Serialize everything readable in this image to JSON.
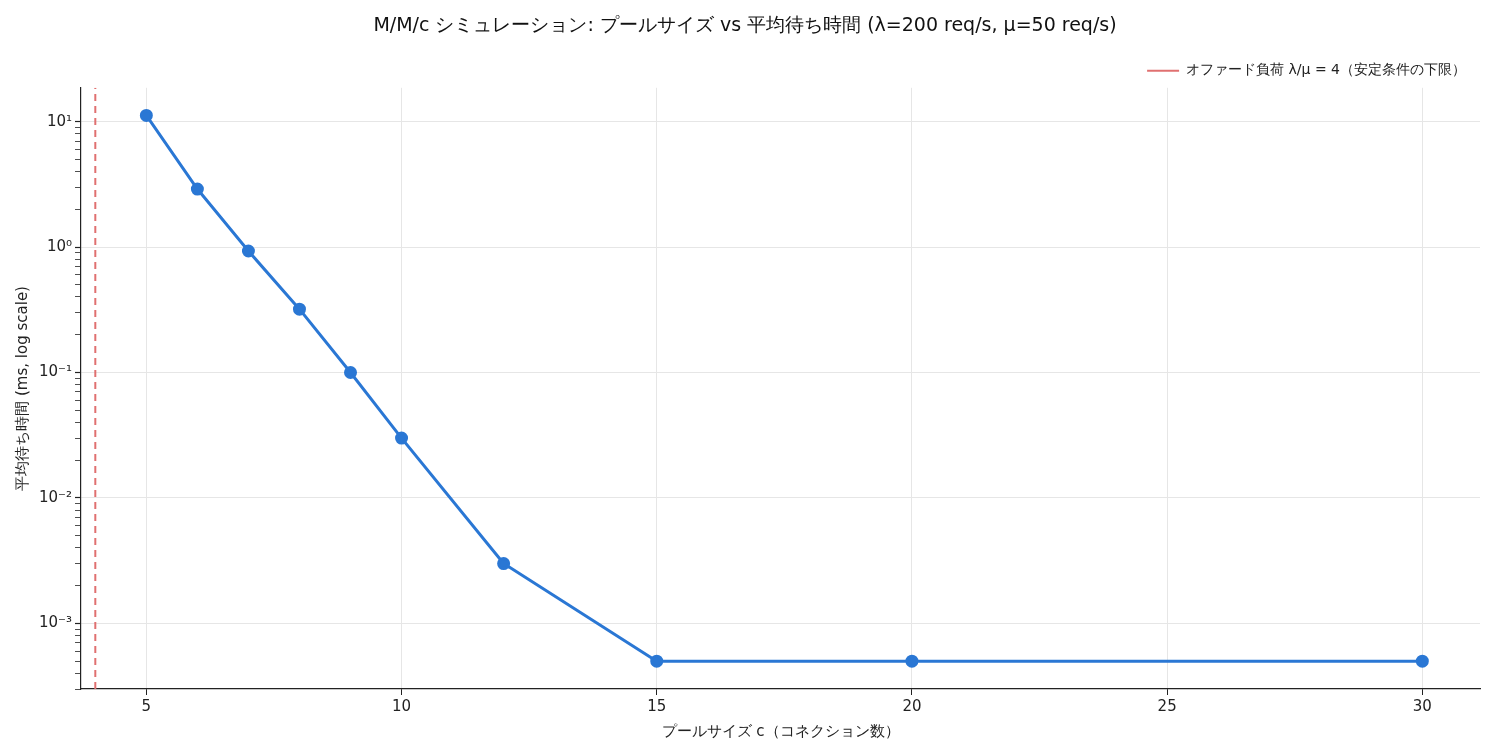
{
  "chart_data": {
    "type": "line",
    "title": "M/M/c シミュレーション: プールサイズ vs 平均待ち時間 (λ=200 req/s, μ=50 req/s)",
    "xlabel": "プールサイズ c（コネクション数）",
    "ylabel": "平均待ち時間 (ms, log scale)",
    "x": [
      5,
      6,
      7,
      8,
      9,
      10,
      12,
      15,
      20,
      30
    ],
    "series": [
      {
        "color": "#2a77d4",
        "values": [
          11.2,
          2.9,
          0.93,
          0.32,
          0.1,
          0.03,
          0.003,
          0.0005,
          0.0005,
          0.0005
        ]
      }
    ],
    "log": "y",
    "xlim": [
      3.72,
      31.13
    ],
    "ylim": [
      0.0003,
      18.6
    ],
    "xticks": [
      5,
      10,
      15,
      20,
      25,
      30
    ],
    "yticks": [
      {
        "value": 0.0003,
        "label": null
      },
      {
        "value": 0.0004,
        "label": null
      },
      {
        "value": 0.0005,
        "label": null
      },
      {
        "value": 0.0006,
        "label": null
      },
      {
        "value": 0.0007,
        "label": null
      },
      {
        "value": 0.0008,
        "label": null
      },
      {
        "value": 0.0009,
        "label": null
      },
      {
        "value": 0.001,
        "label": "10⁻³"
      },
      {
        "value": 0.002,
        "label": null
      },
      {
        "value": 0.003,
        "label": null
      },
      {
        "value": 0.004,
        "label": null
      },
      {
        "value": 0.005,
        "label": null
      },
      {
        "value": 0.006,
        "label": null
      },
      {
        "value": 0.007,
        "label": null
      },
      {
        "value": 0.008,
        "label": null
      },
      {
        "value": 0.009,
        "label": null
      },
      {
        "value": 0.01,
        "label": "10⁻²"
      },
      {
        "value": 0.02,
        "label": null
      },
      {
        "value": 0.03,
        "label": null
      },
      {
        "value": 0.04,
        "label": null
      },
      {
        "value": 0.05,
        "label": null
      },
      {
        "value": 0.06,
        "label": null
      },
      {
        "value": 0.07,
        "label": null
      },
      {
        "value": 0.08,
        "label": null
      },
      {
        "value": 0.09,
        "label": null
      },
      {
        "value": 0.1,
        "label": "10⁻¹"
      },
      {
        "value": 0.2,
        "label": null
      },
      {
        "value": 0.3,
        "label": null
      },
      {
        "value": 0.4,
        "label": null
      },
      {
        "value": 0.5,
        "label": null
      },
      {
        "value": 0.6,
        "label": null
      },
      {
        "value": 0.7,
        "label": null
      },
      {
        "value": 0.8,
        "label": null
      },
      {
        "value": 0.9,
        "label": null
      },
      {
        "value": 1,
        "label": "10⁰"
      },
      {
        "value": 2,
        "label": null
      },
      {
        "value": 3,
        "label": null
      },
      {
        "value": 4,
        "label": null
      },
      {
        "value": 5,
        "label": null
      },
      {
        "value": 6,
        "label": null
      },
      {
        "value": 7,
        "label": null
      },
      {
        "value": 8,
        "label": null
      },
      {
        "value": 9,
        "label": null
      },
      {
        "value": 10,
        "label": "10¹"
      }
    ],
    "ref_lines": [
      {
        "axis": "x",
        "value": 4,
        "label": "オファード負荷 λ/μ = 4（安定条件の下限）",
        "color": "#e07070",
        "line_style": "dashed"
      }
    ],
    "grid": true,
    "legend": "top right",
    "marker": "circle",
    "line_style": "solid"
  }
}
